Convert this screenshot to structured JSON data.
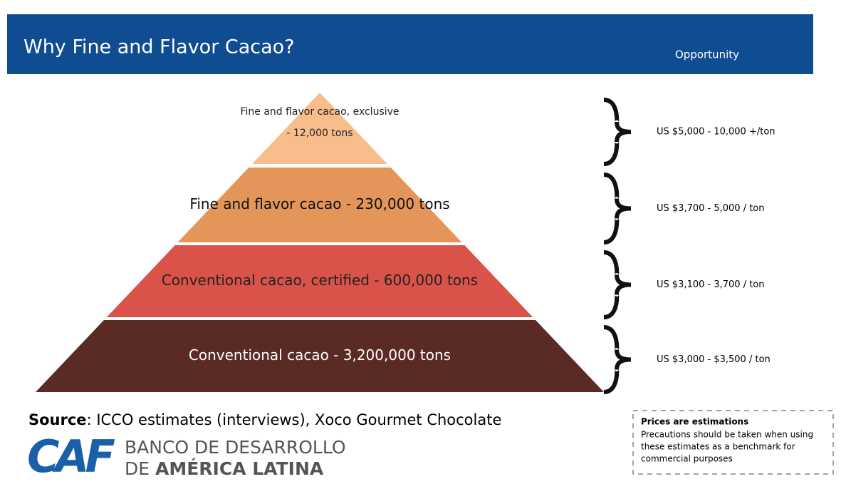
{
  "header": {
    "title": "Why Fine and Flavor Cacao?",
    "opportunity": "Opportunity"
  },
  "pyramid": [
    {
      "lines": [
        "Fine and flavor cacao, exclusive",
        "- 12,000 tons"
      ],
      "price": "US $5,000 - 10,000 +/ton"
    },
    {
      "lines": [
        "Fine and flavor cacao - 230,000 tons"
      ],
      "price": "US $3,700 - 5,000 / ton"
    },
    {
      "lines": [
        "Conventional cacao, certified - 600,000 tons"
      ],
      "price": "US $3,100 - 3,700 / ton"
    },
    {
      "lines": [
        "Conventional cacao - 3,200,000 tons"
      ],
      "price": "US $3,000 - $3,500 / ton"
    }
  ],
  "source": {
    "label": "Source",
    "text": ": ICCO estimates (interviews), Xoco Gourmet Chocolate"
  },
  "logo": {
    "mark": "CAF",
    "line1": "BANCO DE DESARROLLO",
    "line2_prefix": "DE",
    "line2_bold": "AMÉRICA LATINA"
  },
  "note": {
    "title": "Prices are estimations",
    "lines": [
      "Precautions should be taken when using",
      "these estimates as a benchmark for",
      "commercial purposes"
    ]
  }
}
